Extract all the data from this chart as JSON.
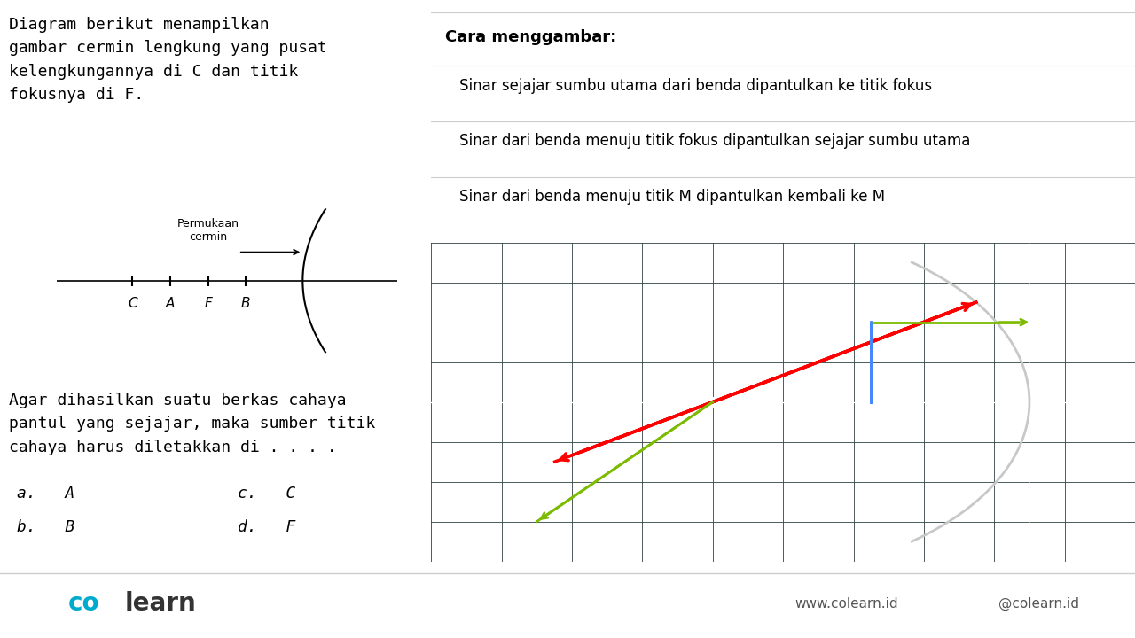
{
  "bg_color": "#ffffff",
  "dark_bg": "#1a2a2a",
  "grid_color": "#2e4040",
  "axis_color": "#ffffff",
  "mirror_color": "#c8c8c8",
  "red_line_color": "#ff0000",
  "green_line_color": "#7cbb00",
  "blue_line_color": "#4488ff",
  "title_text_left": "Diagram berikut menampilkan\ngambar cermin lengkung yang pusat\nkelengkungannya di C dan titik\nfokusnya di F.",
  "cara_title": "Cara menggambar:",
  "cara_items": [
    "Sinar sejajar sumbu utama dari benda dipantulkan ke titik fokus",
    "Sinar dari benda menuju titik fokus dipantulkan sejajar sumbu utama",
    "Sinar dari benda menuju titik M dipantulkan kembali ke M"
  ],
  "permukaan_label": "Permukaan\ncermin",
  "points_labels": [
    "C",
    "A",
    "F",
    "B"
  ],
  "question_text": "Agar dihasilkan suatu berkas cahaya\npantul yang sejajar, maka sumber titik\ncahaya harus diletakkan di . . . .",
  "options": [
    "a.   A",
    "c.   C",
    "b.   B",
    "d.   F"
  ],
  "footer_left": "co  learn",
  "footer_right": "www.colearn.id",
  "footer_social": "@colearn.id"
}
